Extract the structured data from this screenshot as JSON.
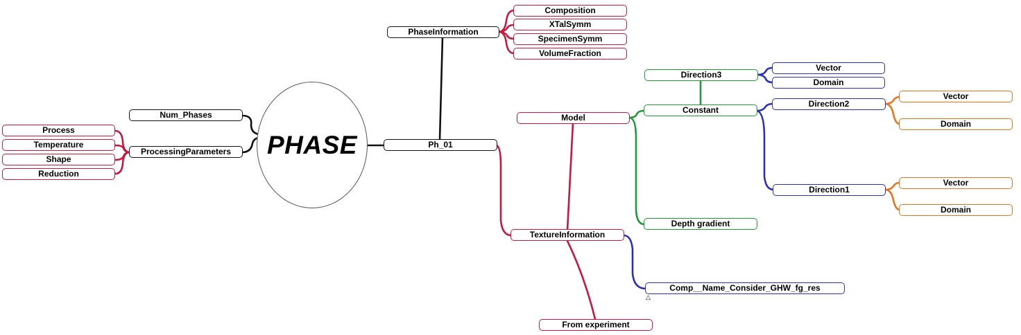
{
  "center_label": "PHASE",
  "nodes": {
    "ph01": "Ph_01",
    "num_phases": "Num_Phases",
    "processing_parameters": "ProcessingParameters",
    "process": "Process",
    "temperature": "Temperature",
    "shape": "Shape",
    "reduction": "Reduction",
    "phase_information": "PhaseInformation",
    "composition": "Composition",
    "xtal_symm": "XTalSymm",
    "specimen_symm": "SpecimenSymm",
    "volume_fraction": "VolumeFraction",
    "model": "Model",
    "texture_information": "TextureInformation",
    "from_experiment": "From experiment",
    "constant": "Constant",
    "depth_gradient": "Depth gradient",
    "direction3": "Direction3",
    "direction3_vector": "Vector",
    "direction3_domain": "Domain",
    "direction2": "Direction2",
    "direction2_vector": "Vector",
    "direction2_domain": "Domain",
    "direction1": "Direction1",
    "direction1_vector": "Vector",
    "direction1_domain": "Domain",
    "comp_name": "Comp__Name_Consider_GHW_fg_res"
  },
  "marker_glyph": "△",
  "colors": {
    "black": "#111111",
    "red": "#c8173c",
    "green": "#1f9a35",
    "blue": "#2b2fb8",
    "orange": "#e8731a"
  }
}
